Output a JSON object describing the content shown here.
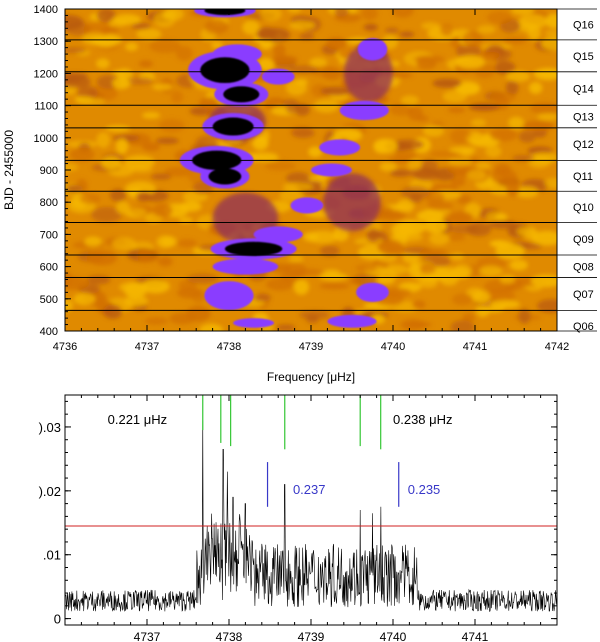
{
  "chart_data": [
    {
      "type": "heatmap",
      "xlabel": "Frequency [μHz]",
      "ylabel": "BJD - 2455000",
      "xlim": [
        4736,
        4742
      ],
      "ylim": [
        400,
        1400
      ],
      "x_ticks": [
        4736,
        4737,
        4738,
        4739,
        4740,
        4741,
        4742
      ],
      "y_ticks": [
        400,
        500,
        600,
        700,
        800,
        900,
        1000,
        1100,
        1200,
        1300,
        1400
      ],
      "colormap": [
        "#e08a00",
        "#f5b800",
        "#b85a10",
        "#8a2a60",
        "#8a3cff",
        "#000000"
      ],
      "quarter_boundaries": [
        464,
        566,
        636,
        737,
        834,
        930,
        1031,
        1101,
        1205,
        1304
      ],
      "quarters": [
        {
          "label": "Q06",
          "center": 415
        },
        {
          "label": "Q07",
          "center": 515
        },
        {
          "label": "Q08",
          "center": 600
        },
        {
          "label": "Q09",
          "center": 686
        },
        {
          "label": "Q10",
          "center": 785
        },
        {
          "label": "Q11",
          "center": 882
        },
        {
          "label": "Q12",
          "center": 980
        },
        {
          "label": "Q13",
          "center": 1066
        },
        {
          "label": "Q14",
          "center": 1153
        },
        {
          "label": "Q15",
          "center": 1254
        },
        {
          "label": "Q16",
          "center": 1352
        }
      ],
      "features": [
        {
          "x": 4737.95,
          "y": 1395,
          "rx": 0.25,
          "ry": 14,
          "level": 5
        },
        {
          "x": 4737.95,
          "y": 1210,
          "rx": 0.3,
          "ry": 40,
          "level": 5
        },
        {
          "x": 4738.15,
          "y": 1135,
          "rx": 0.22,
          "ry": 25,
          "level": 5
        },
        {
          "x": 4738.05,
          "y": 1035,
          "rx": 0.25,
          "ry": 28,
          "level": 5
        },
        {
          "x": 4737.85,
          "y": 930,
          "rx": 0.3,
          "ry": 30,
          "level": 5
        },
        {
          "x": 4737.95,
          "y": 880,
          "rx": 0.2,
          "ry": 25,
          "level": 5
        },
        {
          "x": 4738.3,
          "y": 655,
          "rx": 0.35,
          "ry": 22,
          "level": 5
        },
        {
          "x": 4738.1,
          "y": 1260,
          "rx": 0.3,
          "ry": 30,
          "level": 4
        },
        {
          "x": 4738.6,
          "y": 1190,
          "rx": 0.2,
          "ry": 25,
          "level": 4
        },
        {
          "x": 4739.75,
          "y": 1275,
          "rx": 0.18,
          "ry": 35,
          "level": 4
        },
        {
          "x": 4739.65,
          "y": 1085,
          "rx": 0.3,
          "ry": 30,
          "level": 4
        },
        {
          "x": 4739.35,
          "y": 970,
          "rx": 0.25,
          "ry": 25,
          "level": 4
        },
        {
          "x": 4739.25,
          "y": 900,
          "rx": 0.25,
          "ry": 20,
          "level": 4
        },
        {
          "x": 4738.95,
          "y": 790,
          "rx": 0.2,
          "ry": 25,
          "level": 4
        },
        {
          "x": 4738.6,
          "y": 700,
          "rx": 0.3,
          "ry": 25,
          "level": 4
        },
        {
          "x": 4738.2,
          "y": 600,
          "rx": 0.4,
          "ry": 25,
          "level": 4
        },
        {
          "x": 4738.0,
          "y": 510,
          "rx": 0.3,
          "ry": 45,
          "level": 4
        },
        {
          "x": 4739.75,
          "y": 520,
          "rx": 0.2,
          "ry": 30,
          "level": 4
        },
        {
          "x": 4739.5,
          "y": 430,
          "rx": 0.3,
          "ry": 20,
          "level": 4
        },
        {
          "x": 4738.3,
          "y": 425,
          "rx": 0.25,
          "ry": 15,
          "level": 4
        },
        {
          "x": 4738.1,
          "y": 1050,
          "rx": 0.35,
          "ry": 60,
          "level": 3
        },
        {
          "x": 4738.2,
          "y": 750,
          "rx": 0.4,
          "ry": 80,
          "level": 3
        },
        {
          "x": 4739.5,
          "y": 800,
          "rx": 0.35,
          "ry": 90,
          "level": 3
        },
        {
          "x": 4739.7,
          "y": 1200,
          "rx": 0.3,
          "ry": 90,
          "level": 3
        }
      ]
    },
    {
      "type": "line",
      "xlabel": "",
      "ylabel": "",
      "xlim": [
        4736,
        4742
      ],
      "ylim": [
        -0.001,
        0.035
      ],
      "x_ticks": [
        4737,
        4738,
        4739,
        4740,
        4741
      ],
      "y_ticks": [
        0,
        0.01,
        0.02,
        0.03
      ],
      "y_tick_labels": [
        {
          "value": 0,
          "text": "0"
        },
        {
          "value": 0.01,
          "text": ".01"
        },
        {
          "value": 0.02,
          "text": ").02"
        },
        {
          "value": 0.03,
          "text": ").03"
        }
      ],
      "threshold": 0.0145,
      "threshold_color": "#d02020",
      "spectrum_color": "#000000",
      "noise_level": 0.0045,
      "power_region": [
        4737.6,
        4740.3
      ],
      "peaks": [
        {
          "x": 4737.68,
          "y": 0.031
        },
        {
          "x": 4737.93,
          "y": 0.0265
        },
        {
          "x": 4737.98,
          "y": 0.023
        },
        {
          "x": 4738.05,
          "y": 0.019
        },
        {
          "x": 4738.2,
          "y": 0.018
        },
        {
          "x": 4738.68,
          "y": 0.021
        },
        {
          "x": 4739.6,
          "y": 0.017
        },
        {
          "x": 4739.75,
          "y": 0.0165
        },
        {
          "x": 4739.85,
          "y": 0.0175
        }
      ],
      "green_markers": [
        {
          "x": 4737.68,
          "y0": 0.0295,
          "y1": 0.035
        },
        {
          "x": 4737.9,
          "y0": 0.0275,
          "y1": 0.035
        },
        {
          "x": 4738.02,
          "y0": 0.027,
          "y1": 0.035
        },
        {
          "x": 4738.68,
          "y0": 0.0265,
          "y1": 0.035
        },
        {
          "x": 4739.6,
          "y0": 0.027,
          "y1": 0.035
        },
        {
          "x": 4739.85,
          "y0": 0.0265,
          "y1": 0.035
        }
      ],
      "green_color": "#34c634",
      "blue_markers": [
        {
          "x": 4738.47,
          "y0": 0.0175,
          "y1": 0.0245
        },
        {
          "x": 4740.07,
          "y0": 0.0175,
          "y1": 0.0245
        }
      ],
      "blue_color": "#3838c8",
      "annotations": [
        {
          "text": "0.221 μHz",
          "x": 4736.52,
          "y": 0.0305,
          "color": "#000000"
        },
        {
          "text": "0.238 μHz",
          "x": 4740.0,
          "y": 0.0305,
          "color": "#000000"
        },
        {
          "text": "0.237",
          "x": 4738.78,
          "y": 0.0195,
          "color": "#3838c8"
        },
        {
          "text": "0.235",
          "x": 4740.18,
          "y": 0.0195,
          "color": "#3838c8"
        }
      ]
    }
  ]
}
